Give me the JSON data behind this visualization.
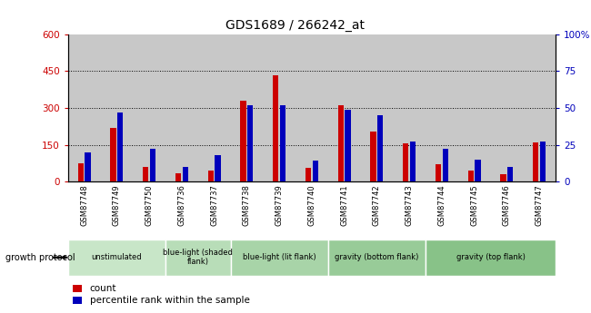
{
  "title": "GDS1689 / 266242_at",
  "samples": [
    "GSM87748",
    "GSM87749",
    "GSM87750",
    "GSM87736",
    "GSM87737",
    "GSM87738",
    "GSM87739",
    "GSM87740",
    "GSM87741",
    "GSM87742",
    "GSM87743",
    "GSM87744",
    "GSM87745",
    "GSM87746",
    "GSM87747"
  ],
  "count_values": [
    75,
    220,
    60,
    35,
    45,
    330,
    435,
    55,
    310,
    205,
    155,
    70,
    45,
    30,
    160
  ],
  "percentile_values": [
    20,
    47,
    22,
    10,
    18,
    52,
    52,
    14,
    49,
    45,
    27,
    22,
    15,
    10,
    27
  ],
  "ylim_left": [
    0,
    600
  ],
  "ylim_right": [
    0,
    100
  ],
  "yticks_left": [
    0,
    150,
    300,
    450,
    600
  ],
  "yticks_right": [
    0,
    25,
    50,
    75,
    100
  ],
  "groups": [
    {
      "label": "unstimulated",
      "start": 0,
      "end": 3,
      "color": "#c8e6c8"
    },
    {
      "label": "blue-light (shaded\nflank)",
      "start": 3,
      "end": 5,
      "color": "#b8ddb8"
    },
    {
      "label": "blue-light (lit flank)",
      "start": 5,
      "end": 8,
      "color": "#a8d4a8"
    },
    {
      "label": "gravity (bottom flank)",
      "start": 8,
      "end": 11,
      "color": "#98cb98"
    },
    {
      "label": "gravity (top flank)",
      "start": 11,
      "end": 15,
      "color": "#88c288"
    }
  ],
  "bar_color_red": "#cc0000",
  "bar_color_blue": "#0000bb",
  "bar_width": 0.18,
  "background_color": "#c8c8c8",
  "sample_row_color": "#b8b8b8",
  "legend_count": "count",
  "legend_percentile": "percentile rank within the sample",
  "growth_protocol_label": "growth protocol",
  "left_label_color": "#cc0000",
  "right_label_color": "#0000bb"
}
